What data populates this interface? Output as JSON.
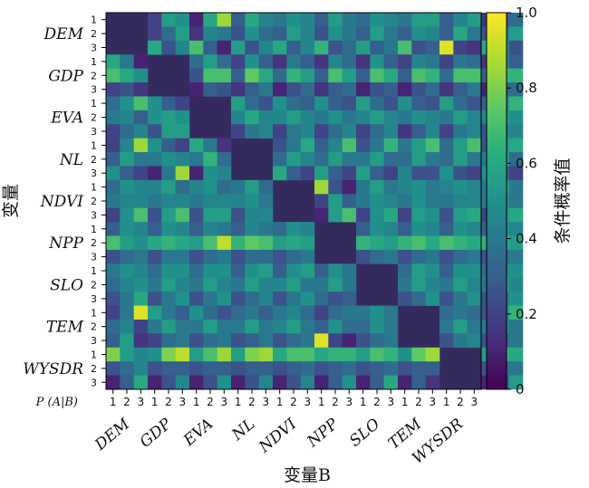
{
  "chart_data": {
    "type": "heatmap",
    "xlabel": "变量B",
    "ylabel": "变量",
    "corner_label": "P (A|B)",
    "variables": [
      "DEM",
      "GDP",
      "EVA",
      "NL",
      "NDVI",
      "NPP",
      "SLO",
      "TEM",
      "WYSDR"
    ],
    "levels": [
      "1",
      "2",
      "3"
    ],
    "colorbar": {
      "label": "条件概率值",
      "min": 0,
      "max": 1,
      "ticks": [
        "0",
        "0.2",
        "0.4",
        "0.6",
        "0.8",
        "1.0"
      ]
    },
    "colormap": "viridis",
    "rows": [
      [
        null,
        null,
        null,
        0.2,
        0.55,
        0.5,
        0.1,
        0.6,
        0.85,
        0.3,
        0.6,
        0.45,
        0.4,
        0.5,
        0.45,
        0.3,
        0.55,
        0.4,
        0.35,
        0.5,
        0.45,
        0.4,
        0.55,
        0.55,
        0.3,
        0.45,
        0.55,
        0.15,
        0.25,
        0.35
      ],
      [
        null,
        null,
        null,
        0.2,
        0.35,
        0.55,
        0.15,
        0.45,
        0.4,
        0.25,
        0.5,
        0.35,
        0.3,
        0.55,
        0.45,
        0.25,
        0.5,
        0.4,
        0.3,
        0.55,
        0.4,
        0.3,
        0.5,
        0.45,
        0.3,
        0.6,
        0.4,
        0.25,
        0.4,
        0.55
      ],
      [
        null,
        null,
        null,
        0.6,
        0.25,
        0.45,
        0.7,
        0.3,
        0.1,
        0.55,
        0.25,
        0.45,
        0.6,
        0.3,
        0.45,
        0.65,
        0.25,
        0.35,
        0.55,
        0.3,
        0.4,
        0.7,
        0.25,
        0.3,
        0.95,
        0.2,
        0.15,
        0.6,
        0.45,
        0.25
      ],
      [
        0.6,
        0.4,
        0.1,
        null,
        null,
        null,
        0.35,
        0.55,
        0.35,
        0.2,
        0.5,
        0.3,
        0.15,
        0.4,
        0.3,
        0.15,
        0.45,
        0.35,
        0.15,
        0.5,
        0.3,
        0.2,
        0.45,
        0.4,
        0.2,
        0.4,
        0.35,
        0.15,
        0.45,
        0.3
      ],
      [
        0.7,
        0.6,
        0.5,
        null,
        null,
        null,
        0.25,
        0.7,
        0.7,
        0.3,
        0.75,
        0.6,
        0.35,
        0.65,
        0.55,
        0.3,
        0.7,
        0.55,
        0.3,
        0.7,
        0.6,
        0.3,
        0.7,
        0.65,
        0.35,
        0.7,
        0.7,
        0.3,
        0.65,
        0.65
      ],
      [
        0.2,
        0.25,
        0.15,
        null,
        null,
        null,
        0.1,
        0.3,
        0.25,
        0.15,
        0.3,
        0.4,
        0.1,
        0.25,
        0.35,
        0.15,
        0.3,
        0.35,
        0.1,
        0.25,
        0.3,
        0.1,
        0.25,
        0.35,
        0.15,
        0.3,
        0.4,
        0.1,
        0.3,
        0.35
      ],
      [
        0.35,
        0.5,
        0.7,
        0.5,
        0.3,
        0.2,
        null,
        null,
        null,
        0.55,
        0.35,
        0.25,
        0.5,
        0.35,
        0.3,
        0.5,
        0.3,
        0.25,
        0.55,
        0.35,
        0.25,
        0.5,
        0.3,
        0.25,
        0.55,
        0.35,
        0.25,
        0.3,
        0.45,
        0.65
      ],
      [
        0.4,
        0.45,
        0.3,
        0.5,
        0.55,
        0.5,
        null,
        null,
        null,
        0.45,
        0.6,
        0.45,
        0.45,
        0.55,
        0.45,
        0.4,
        0.5,
        0.4,
        0.45,
        0.55,
        0.45,
        0.4,
        0.5,
        0.45,
        0.4,
        0.55,
        0.45,
        0.45,
        0.5,
        0.5
      ],
      [
        0.2,
        0.35,
        0.45,
        0.25,
        0.55,
        0.55,
        null,
        null,
        null,
        0.2,
        0.4,
        0.45,
        0.2,
        0.4,
        0.45,
        0.2,
        0.35,
        0.45,
        0.2,
        0.35,
        0.45,
        0.15,
        0.3,
        0.45,
        0.2,
        0.4,
        0.45,
        0.25,
        0.4,
        0.45
      ],
      [
        0.2,
        0.45,
        0.85,
        0.5,
        0.3,
        0.2,
        0.6,
        0.4,
        0.15,
        null,
        null,
        null,
        0.25,
        0.4,
        0.6,
        0.3,
        0.45,
        0.7,
        0.25,
        0.4,
        0.65,
        0.4,
        0.55,
        0.7,
        0.35,
        0.55,
        0.7,
        0.25,
        0.5,
        0.6
      ],
      [
        0.3,
        0.55,
        0.4,
        0.4,
        0.5,
        0.45,
        0.4,
        0.65,
        0.35,
        null,
        null,
        null,
        0.35,
        0.55,
        0.45,
        0.35,
        0.55,
        0.4,
        0.4,
        0.55,
        0.35,
        0.35,
        0.55,
        0.4,
        0.35,
        0.55,
        0.4,
        0.4,
        0.55,
        0.35
      ],
      [
        0.5,
        0.3,
        0.2,
        0.1,
        0.4,
        0.85,
        0.1,
        0.5,
        0.45,
        null,
        null,
        null,
        0.6,
        0.3,
        0.2,
        0.55,
        0.3,
        0.2,
        0.55,
        0.3,
        0.2,
        0.45,
        0.25,
        0.25,
        0.5,
        0.25,
        0.2,
        0.5,
        0.3,
        0.2
      ],
      [
        0.35,
        0.5,
        0.45,
        0.45,
        0.55,
        0.35,
        0.45,
        0.5,
        0.35,
        0.4,
        0.55,
        0.35,
        null,
        null,
        null,
        0.85,
        0.25,
        0.1,
        0.4,
        0.55,
        0.4,
        0.45,
        0.5,
        0.4,
        0.45,
        0.5,
        0.45,
        0.4,
        0.55,
        0.4
      ],
      [
        0.4,
        0.45,
        0.45,
        0.4,
        0.45,
        0.45,
        0.4,
        0.45,
        0.45,
        0.45,
        0.5,
        0.4,
        null,
        null,
        null,
        0.2,
        0.55,
        0.3,
        0.4,
        0.5,
        0.45,
        0.4,
        0.5,
        0.4,
        0.4,
        0.45,
        0.45,
        0.4,
        0.5,
        0.4
      ],
      [
        0.2,
        0.5,
        0.7,
        0.25,
        0.55,
        0.7,
        0.25,
        0.55,
        0.55,
        0.25,
        0.45,
        0.45,
        null,
        null,
        null,
        0.1,
        0.55,
        0.7,
        0.2,
        0.5,
        0.6,
        0.2,
        0.55,
        0.5,
        0.25,
        0.55,
        0.6,
        0.2,
        0.55,
        0.6
      ],
      [
        0.3,
        0.5,
        0.45,
        0.3,
        0.5,
        0.45,
        0.3,
        0.45,
        0.4,
        0.3,
        0.45,
        0.4,
        0.35,
        0.5,
        0.45,
        null,
        null,
        null,
        0.3,
        0.5,
        0.45,
        0.3,
        0.5,
        0.45,
        0.3,
        0.5,
        0.45,
        0.3,
        0.5,
        0.45
      ],
      [
        0.7,
        0.55,
        0.5,
        0.6,
        0.65,
        0.6,
        0.55,
        0.7,
        0.9,
        0.65,
        0.75,
        0.7,
        0.55,
        0.6,
        0.55,
        null,
        null,
        null,
        0.65,
        0.6,
        0.55,
        0.65,
        0.7,
        0.6,
        0.7,
        0.65,
        0.6,
        0.65,
        0.6,
        0.55
      ],
      [
        0.25,
        0.35,
        0.4,
        0.25,
        0.4,
        0.4,
        0.25,
        0.35,
        0.4,
        0.25,
        0.35,
        0.35,
        0.25,
        0.35,
        0.4,
        null,
        null,
        null,
        0.25,
        0.35,
        0.4,
        0.25,
        0.35,
        0.4,
        0.25,
        0.35,
        0.4,
        0.25,
        0.35,
        0.4
      ],
      [
        0.4,
        0.5,
        0.45,
        0.35,
        0.5,
        0.5,
        0.35,
        0.5,
        0.5,
        0.3,
        0.5,
        0.55,
        0.3,
        0.5,
        0.55,
        0.3,
        0.5,
        0.4,
        null,
        null,
        null,
        0.35,
        0.55,
        0.5,
        0.3,
        0.5,
        0.5,
        0.35,
        0.5,
        0.5
      ],
      [
        0.35,
        0.45,
        0.5,
        0.4,
        0.55,
        0.45,
        0.4,
        0.55,
        0.45,
        0.4,
        0.55,
        0.45,
        0.45,
        0.55,
        0.4,
        0.4,
        0.55,
        0.4,
        null,
        null,
        null,
        0.4,
        0.55,
        0.45,
        0.4,
        0.55,
        0.45,
        0.4,
        0.55,
        0.45
      ],
      [
        0.25,
        0.4,
        0.6,
        0.25,
        0.4,
        0.5,
        0.25,
        0.4,
        0.5,
        0.25,
        0.35,
        0.45,
        0.25,
        0.4,
        0.5,
        0.35,
        0.25,
        0.3,
        null,
        null,
        null,
        0.25,
        0.35,
        0.5,
        0.25,
        0.4,
        0.5,
        0.25,
        0.4,
        0.5
      ],
      [
        0.2,
        0.4,
        0.95,
        0.55,
        0.4,
        0.3,
        0.5,
        0.35,
        0.25,
        0.35,
        0.4,
        0.3,
        0.4,
        0.45,
        0.35,
        0.2,
        0.35,
        0.4,
        0.4,
        0.5,
        0.4,
        null,
        null,
        null,
        0.35,
        0.4,
        0.35,
        0.25,
        0.5,
        0.65
      ],
      [
        0.35,
        0.45,
        0.2,
        0.4,
        0.55,
        0.4,
        0.4,
        0.55,
        0.4,
        0.4,
        0.55,
        0.4,
        0.45,
        0.55,
        0.4,
        0.3,
        0.5,
        0.35,
        0.35,
        0.5,
        0.4,
        null,
        null,
        null,
        0.4,
        0.55,
        0.4,
        0.4,
        0.5,
        0.4
      ],
      [
        0.3,
        0.55,
        0.15,
        0.2,
        0.35,
        0.4,
        0.25,
        0.35,
        0.4,
        0.25,
        0.3,
        0.4,
        0.25,
        0.35,
        0.4,
        0.95,
        0.2,
        0.1,
        0.25,
        0.35,
        0.4,
        null,
        null,
        null,
        0.25,
        0.4,
        0.45,
        0.25,
        0.35,
        0.4
      ],
      [
        0.8,
        0.55,
        0.45,
        0.5,
        0.8,
        0.9,
        0.55,
        0.7,
        0.85,
        0.55,
        0.8,
        0.85,
        0.6,
        0.7,
        0.7,
        0.6,
        0.65,
        0.65,
        0.55,
        0.7,
        0.65,
        0.5,
        0.75,
        0.85,
        null,
        null,
        null,
        0.55,
        0.65,
        0.6
      ],
      [
        0.25,
        0.35,
        0.45,
        0.25,
        0.3,
        0.3,
        0.25,
        0.3,
        0.3,
        0.25,
        0.3,
        0.3,
        0.25,
        0.3,
        0.35,
        0.25,
        0.3,
        0.35,
        0.25,
        0.3,
        0.35,
        0.25,
        0.3,
        0.3,
        null,
        null,
        null,
        0.25,
        0.35,
        0.4
      ],
      [
        0.1,
        0.3,
        0.6,
        0.1,
        0.25,
        0.45,
        0.1,
        0.25,
        0.5,
        0.1,
        0.25,
        0.45,
        0.1,
        0.25,
        0.45,
        0.1,
        0.3,
        0.5,
        0.1,
        0.3,
        0.6,
        0.1,
        0.3,
        0.15,
        null,
        null,
        null,
        0.1,
        0.3,
        0.55
      ]
    ]
  },
  "colors": {
    "background_cell": "#352a5e",
    "frame": "#000000"
  }
}
